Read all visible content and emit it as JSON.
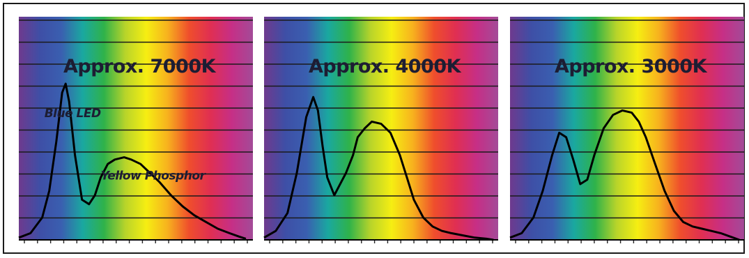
{
  "colors": {
    "spectrum": [
      "#6e3a8e",
      "#3e4fa6",
      "#3a5fb0",
      "#1aa8a0",
      "#2fb24a",
      "#b8d42a",
      "#f6ee12",
      "#f7b11e",
      "#ef4e2c",
      "#e02f52",
      "#c62f86",
      "#a34b98"
    ],
    "curve": "#000000",
    "gridline": "#1a1a1a",
    "text": "#1d1d33"
  },
  "chart_data": [
    {
      "type": "line",
      "title": "Approx. 7000K",
      "annotations": [
        {
          "text": "Blue LED",
          "x": 0.24,
          "y": 0.55
        },
        {
          "text": "Yellow Phosphor",
          "x": 0.35,
          "y": 0.27
        }
      ],
      "xlim": [
        0,
        1
      ],
      "ylim": [
        0,
        1
      ],
      "grid": true,
      "x": [
        0,
        0.05,
        0.1,
        0.13,
        0.16,
        0.185,
        0.2,
        0.215,
        0.24,
        0.27,
        0.3,
        0.325,
        0.35,
        0.38,
        0.41,
        0.45,
        0.48,
        0.52,
        0.56,
        0.6,
        0.65,
        0.7,
        0.75,
        0.8,
        0.85,
        0.9,
        0.94,
        0.97
      ],
      "y": [
        0.01,
        0.03,
        0.1,
        0.22,
        0.44,
        0.66,
        0.7,
        0.62,
        0.38,
        0.18,
        0.16,
        0.2,
        0.28,
        0.34,
        0.36,
        0.37,
        0.36,
        0.34,
        0.3,
        0.26,
        0.2,
        0.15,
        0.11,
        0.08,
        0.05,
        0.03,
        0.015,
        0.005
      ]
    },
    {
      "type": "line",
      "title": "Approx. 4000K",
      "xlim": [
        0,
        1
      ],
      "ylim": [
        0,
        1
      ],
      "grid": true,
      "x": [
        0,
        0.05,
        0.1,
        0.14,
        0.18,
        0.21,
        0.23,
        0.25,
        0.27,
        0.3,
        0.32,
        0.35,
        0.38,
        0.4,
        0.43,
        0.46,
        0.5,
        0.54,
        0.58,
        0.61,
        0.64,
        0.68,
        0.72,
        0.76,
        0.8,
        0.85,
        0.9,
        0.95,
        0.98
      ],
      "y": [
        0.01,
        0.04,
        0.12,
        0.3,
        0.55,
        0.64,
        0.58,
        0.42,
        0.28,
        0.2,
        0.24,
        0.3,
        0.38,
        0.46,
        0.5,
        0.53,
        0.52,
        0.48,
        0.38,
        0.28,
        0.18,
        0.1,
        0.06,
        0.04,
        0.03,
        0.02,
        0.01,
        0.005,
        0
      ]
    },
    {
      "type": "line",
      "title": "Approx. 3000K",
      "xlim": [
        0,
        1
      ],
      "ylim": [
        0,
        1
      ],
      "grid": true,
      "x": [
        0,
        0.05,
        0.1,
        0.14,
        0.18,
        0.21,
        0.24,
        0.27,
        0.3,
        0.33,
        0.36,
        0.4,
        0.44,
        0.48,
        0.52,
        0.55,
        0.58,
        0.62,
        0.66,
        0.7,
        0.74,
        0.78,
        0.82,
        0.86,
        0.9,
        0.94,
        0.98
      ],
      "y": [
        0.01,
        0.03,
        0.1,
        0.22,
        0.38,
        0.48,
        0.46,
        0.36,
        0.25,
        0.27,
        0.38,
        0.5,
        0.56,
        0.58,
        0.57,
        0.53,
        0.46,
        0.34,
        0.22,
        0.13,
        0.08,
        0.06,
        0.05,
        0.04,
        0.03,
        0.015,
        0
      ]
    }
  ]
}
